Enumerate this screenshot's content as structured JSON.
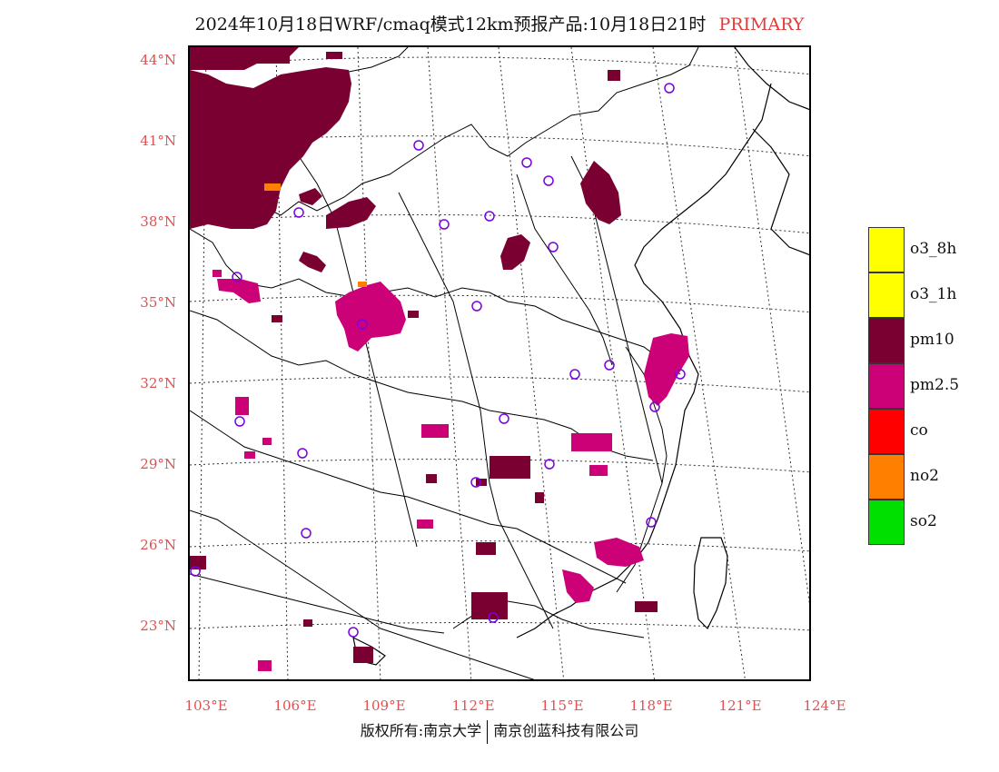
{
  "title": {
    "main": "2024年10月18日WRF/cmaq模式12km预报产品:10月18日21时",
    "tag": "PRIMARY"
  },
  "axes": {
    "lat_labels": [
      "44°N",
      "41°N",
      "38°N",
      "35°N",
      "32°N",
      "29°N",
      "26°N",
      "23°N"
    ],
    "lon_labels": [
      "103°E",
      "106°E",
      "109°E",
      "112°E",
      "115°E",
      "118°E",
      "121°E",
      "124°E"
    ]
  },
  "legend": [
    {
      "label": "o3_8h",
      "color": "#ffff00"
    },
    {
      "label": "o3_1h",
      "color": "#ffff00"
    },
    {
      "label": "pm10",
      "color": "#7a0032"
    },
    {
      "label": "pm2.5",
      "color": "#cc0077"
    },
    {
      "label": "co",
      "color": "#ff0000"
    },
    {
      "label": "no2",
      "color": "#ff7f00"
    },
    {
      "label": "so2",
      "color": "#00e000"
    }
  ],
  "copyright": {
    "left": "版权所有:南京大学",
    "right": "南京创蓝科技有限公司"
  },
  "colors": {
    "pm10": "#7a0032",
    "pm25": "#cc0077",
    "no2": "#ff7f00",
    "station": "#7a00e0",
    "label": "#e05050"
  }
}
